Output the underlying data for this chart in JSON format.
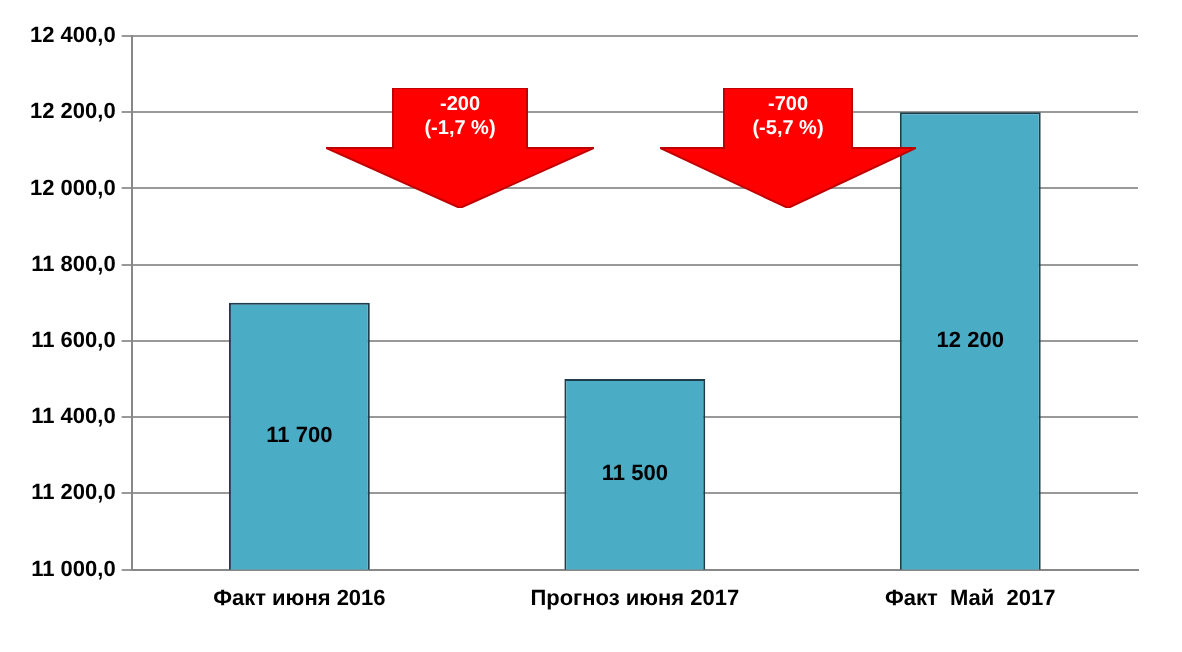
{
  "chart_data": {
    "type": "bar",
    "categories": [
      "Факт июня 2016",
      "Прогноз июня 2017",
      "Факт  Май  2017"
    ],
    "values": [
      11700,
      11500,
      12200
    ],
    "value_labels": [
      "11 700",
      "11 500",
      "12 200"
    ],
    "color": "#4bacc6",
    "ylim": [
      11000,
      12400
    ],
    "yticks": [
      {
        "value": 11000,
        "label": "11 000,0"
      },
      {
        "value": 11200,
        "label": "11 200,0"
      },
      {
        "value": 11400,
        "label": "11 400,0"
      },
      {
        "value": 11600,
        "label": "11 600,0"
      },
      {
        "value": 11800,
        "label": "11 800,0"
      },
      {
        "value": 12000,
        "label": "12 000,0"
      },
      {
        "value": 12200,
        "label": "12 200,0"
      },
      {
        "value": 12400,
        "label": "12 400,0"
      }
    ],
    "grid": "y",
    "annotations": [
      "-200\n(-1,7 %)",
      "-700\n(-5,7 %)"
    ]
  }
}
